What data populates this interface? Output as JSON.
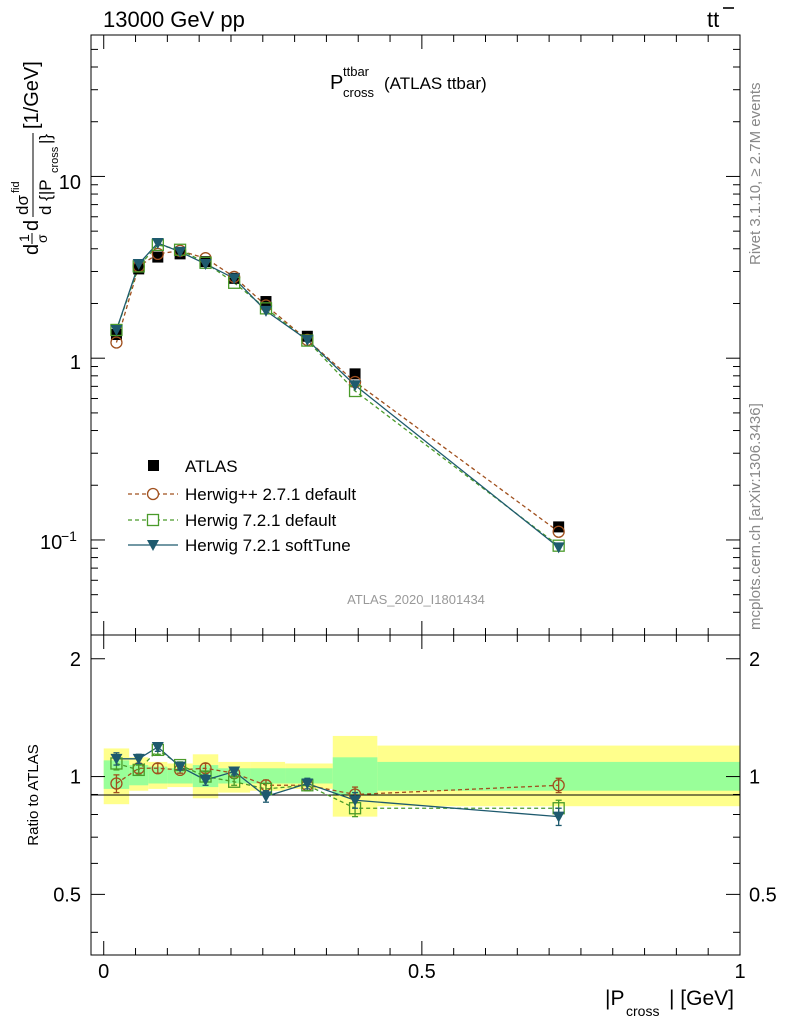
{
  "header": {
    "left": "13000 GeV pp",
    "right_main": "tt",
    "right_bar_char": "t"
  },
  "plot_title": {
    "sym": "P",
    "sup": "ttbar",
    "sub": "cross",
    "rest": "(ATLAS ttbar)"
  },
  "side_labels": {
    "rivet": "Rivet 3.1.10, ≥ 2.7M events",
    "mcplots": "mcplots.cern.ch [arXiv:1306.3436]"
  },
  "analysis_id": "ATLAS_2020_I1801434",
  "colors": {
    "atlas": "#000000",
    "herwigpp": "#a0501e",
    "herwig_default": "#4a9b2a",
    "herwig_soft": "#1e5a6e",
    "band_inner": "#99ff99",
    "band_outer": "#ffff8c"
  },
  "chart_data": [
    {
      "type": "scatter",
      "ylabel_parts": {
        "main": "d",
        "frac1_num": "1",
        "frac1_den": "σ",
        "mid": "d",
        "frac2_num": "dσ",
        "frac2_num_sup": "fid",
        "frac2_den": "d {|P",
        "frac2_den_sub": "cross",
        "frac2_den_end": "|}",
        "unit": "[1/GeV]"
      },
      "yscale": "log",
      "ylim": [
        0.03,
        60
      ],
      "xlim": [
        -0.02,
        1.0
      ],
      "ytick_labels": {
        "major_10": "10",
        "major_1": "1",
        "major_01_base": "10",
        "major_01_exp": "−1"
      },
      "legend_position": "lower-left",
      "x": [
        0.02,
        0.055,
        0.085,
        0.12,
        0.16,
        0.205,
        0.255,
        0.32,
        0.395,
        0.715
      ],
      "series": [
        {
          "name": "ATLAS",
          "style": "marker-square",
          "values": [
            1.35,
            3.1,
            3.6,
            3.75,
            3.4,
            2.75,
            2.05,
            1.32,
            0.82,
            0.118
          ]
        },
        {
          "name": "Herwig++ 2.7.1 default",
          "style": "dashed-circle",
          "values": [
            1.22,
            3.2,
            3.75,
            3.9,
            3.55,
            2.8,
            1.95,
            1.26,
            0.74,
            0.111
          ]
        },
        {
          "name": "Herwig 7.2.1 default",
          "style": "dashed-open-square",
          "values": [
            1.43,
            3.2,
            4.2,
            3.95,
            3.35,
            2.6,
            1.88,
            1.25,
            0.66,
            0.093
          ]
        },
        {
          "name": "Herwig 7.2.1 softTune",
          "style": "solid-triangle-down",
          "values": [
            1.43,
            3.3,
            4.3,
            3.85,
            3.3,
            2.75,
            1.82,
            1.26,
            0.71,
            0.091
          ]
        }
      ]
    },
    {
      "type": "scatter",
      "ylabel": "Ratio to ATLAS",
      "xlabel_sym": "|P",
      "xlabel_sub": "cross",
      "xlabel_end": "| [GeV]",
      "ylim": [
        0.35,
        2.3
      ],
      "xlim": [
        -0.02,
        1.0
      ],
      "yticks": [
        0.5,
        1,
        2
      ],
      "ytick_labels": [
        "0.5",
        "1",
        "2"
      ],
      "xticks": [
        0,
        0.5,
        1
      ],
      "xtick_labels": [
        "0",
        "0.5",
        "1"
      ],
      "x": [
        0.02,
        0.055,
        0.085,
        0.12,
        0.16,
        0.205,
        0.255,
        0.32,
        0.395,
        0.715
      ],
      "bins": [
        {
          "lo": 0.0,
          "hi": 0.04,
          "inner": [
            0.93,
            1.1
          ],
          "outer": [
            0.85,
            1.18
          ]
        },
        {
          "lo": 0.04,
          "hi": 0.07,
          "inner": [
            0.95,
            1.07
          ],
          "outer": [
            0.92,
            1.12
          ]
        },
        {
          "lo": 0.07,
          "hi": 0.1,
          "inner": [
            0.96,
            1.06
          ],
          "outer": [
            0.93,
            1.09
          ]
        },
        {
          "lo": 0.1,
          "hi": 0.14,
          "inner": [
            0.96,
            1.05
          ],
          "outer": [
            0.94,
            1.08
          ]
        },
        {
          "lo": 0.14,
          "hi": 0.18,
          "inner": [
            0.94,
            1.07
          ],
          "outer": [
            0.88,
            1.14
          ]
        },
        {
          "lo": 0.18,
          "hi": 0.23,
          "inner": [
            0.96,
            1.05
          ],
          "outer": [
            0.91,
            1.09
          ]
        },
        {
          "lo": 0.23,
          "hi": 0.285,
          "inner": [
            0.96,
            1.05
          ],
          "outer": [
            0.92,
            1.09
          ]
        },
        {
          "lo": 0.285,
          "hi": 0.36,
          "inner": [
            0.96,
            1.05
          ],
          "outer": [
            0.93,
            1.08
          ]
        },
        {
          "lo": 0.36,
          "hi": 0.43,
          "inner": [
            0.9,
            1.12
          ],
          "outer": [
            0.79,
            1.27
          ]
        },
        {
          "lo": 0.43,
          "hi": 1.0,
          "inner": [
            0.92,
            1.09
          ],
          "outer": [
            0.84,
            1.2
          ]
        }
      ],
      "series": [
        {
          "name": "Herwig++ 2.7.1 default",
          "values": [
            0.96,
            1.05,
            1.05,
            1.04,
            1.05,
            1.02,
            0.95,
            0.95,
            0.9,
            0.95
          ],
          "errors": [
            0.05,
            0.03,
            0.03,
            0.02,
            0.03,
            0.02,
            0.03,
            0.03,
            0.04,
            0.04
          ]
        },
        {
          "name": "Herwig 7.2.1 default",
          "values": [
            1.08,
            1.04,
            1.17,
            1.07,
            1.0,
            0.97,
            0.93,
            0.95,
            0.83,
            0.83
          ],
          "errors": [
            0.04,
            0.03,
            0.03,
            0.02,
            0.03,
            0.02,
            0.03,
            0.03,
            0.04,
            0.04
          ]
        },
        {
          "name": "Herwig 7.2.1 softTune",
          "values": [
            1.11,
            1.11,
            1.19,
            1.06,
            0.98,
            1.03,
            0.89,
            0.96,
            0.87,
            0.79
          ],
          "errors": [
            0.04,
            0.03,
            0.03,
            0.02,
            0.03,
            0.02,
            0.03,
            0.03,
            0.04,
            0.04
          ]
        }
      ]
    }
  ]
}
